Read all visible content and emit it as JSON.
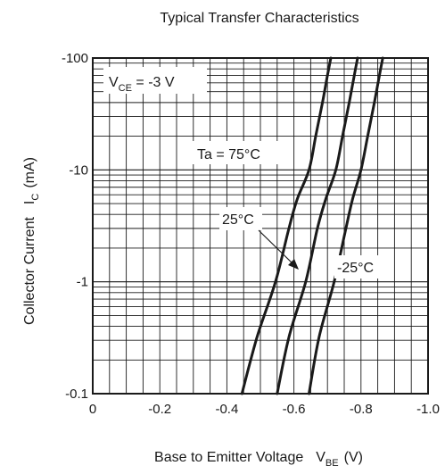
{
  "chart_data": {
    "type": "line",
    "title": "Typical Transfer Characteristics",
    "xlabel": {
      "main": "Base to Emitter Voltage",
      "sym": "V",
      "sub": "BE",
      "unit": "(V)"
    },
    "ylabel": {
      "main": "Collector Current",
      "sym": "I",
      "sub": "C",
      "unit": "(mA)"
    },
    "x_axis": {
      "range": [
        0,
        -1.0
      ],
      "tick_values": [
        0,
        -0.2,
        -0.4,
        -0.6,
        -0.8,
        -1.0
      ],
      "tick_labels": [
        "0",
        "-0.2",
        "-0.4",
        "-0.6",
        "-0.8",
        "-1.0"
      ]
    },
    "y_axis": {
      "scale": "log",
      "range": [
        -0.1,
        -100
      ],
      "tick_values": [
        -0.1,
        -1,
        -10,
        -100
      ],
      "tick_labels": [
        "-0.1",
        "-1",
        "-10",
        "-100"
      ]
    },
    "grid": true,
    "condition": {
      "sym": "V",
      "sub": "CE",
      "rest": " = -3 V"
    },
    "series": [
      {
        "name": "Ta = 75°C",
        "points": [
          [
            -0.445,
            -0.1
          ],
          [
            -0.49,
            -0.32
          ],
          [
            -0.545,
            -1
          ],
          [
            -0.585,
            -3
          ],
          [
            -0.61,
            -5.5
          ],
          [
            -0.645,
            -10
          ],
          [
            -0.665,
            -20
          ],
          [
            -0.685,
            -40
          ],
          [
            -0.7,
            -70
          ],
          [
            -0.71,
            -100
          ]
        ]
      },
      {
        "name": "25°C",
        "points": [
          [
            -0.55,
            -0.1
          ],
          [
            -0.585,
            -0.32
          ],
          [
            -0.635,
            -1
          ],
          [
            -0.67,
            -3
          ],
          [
            -0.695,
            -5.5
          ],
          [
            -0.725,
            -10
          ],
          [
            -0.745,
            -20
          ],
          [
            -0.765,
            -40
          ],
          [
            -0.78,
            -70
          ],
          [
            -0.79,
            -100
          ]
        ]
      },
      {
        "name": "-25°C",
        "points": [
          [
            -0.645,
            -0.1
          ],
          [
            -0.675,
            -0.32
          ],
          [
            -0.72,
            -1
          ],
          [
            -0.755,
            -3
          ],
          [
            -0.775,
            -5.5
          ],
          [
            -0.8,
            -10
          ],
          [
            -0.82,
            -20
          ],
          [
            -0.84,
            -40
          ],
          [
            -0.855,
            -70
          ],
          [
            -0.865,
            -100
          ]
        ]
      }
    ],
    "annotations": [
      {
        "text": "Ta = 75°C",
        "series": 0
      },
      {
        "text": "25°C",
        "series": 1,
        "arrow": true
      },
      {
        "text": "-25°C",
        "series": 2
      }
    ]
  }
}
